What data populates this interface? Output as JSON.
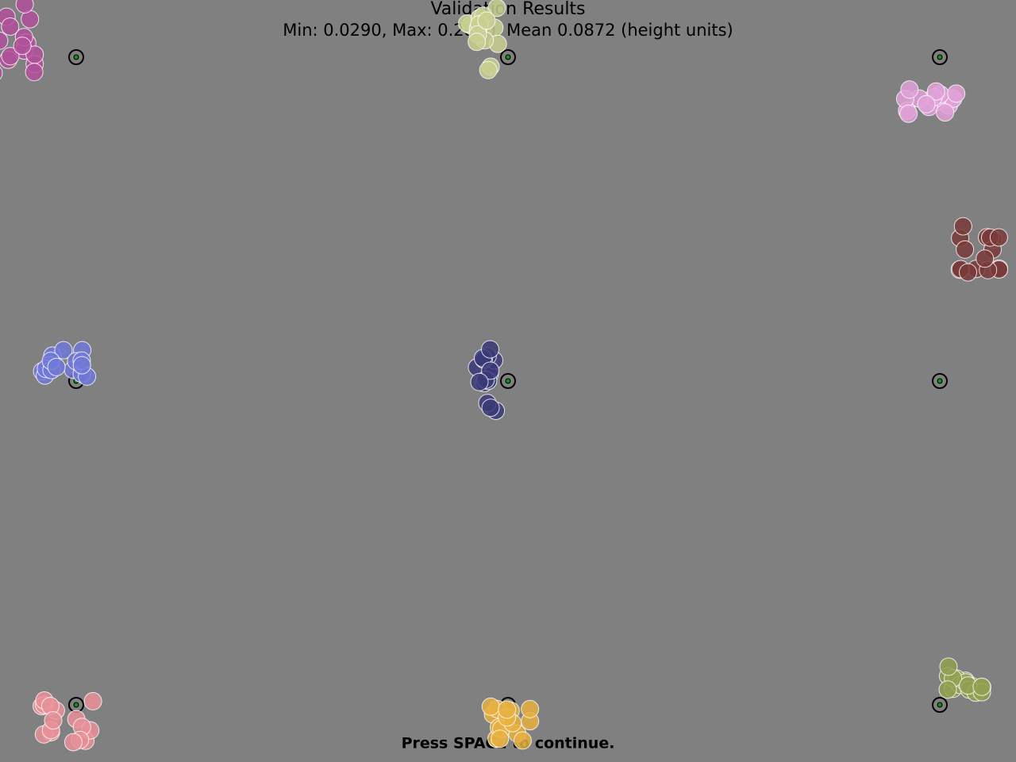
{
  "header": {
    "title": "Validation Results",
    "stats": "Min: 0.0290, Max: 0.2810, Mean 0.0872 (height units)"
  },
  "footer": {
    "instruction": "Press SPACE to continue."
  }
}
